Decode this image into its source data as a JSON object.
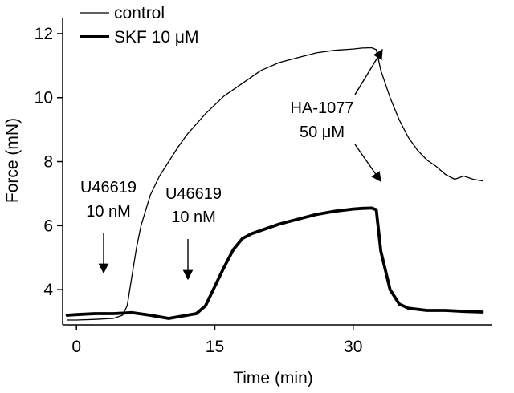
{
  "chart_data": {
    "type": "line",
    "title": "",
    "xlabel": "Time (min)",
    "ylabel": "Force (mN)",
    "xlim": [
      -1.5,
      45
    ],
    "ylim": [
      2.9,
      12.5
    ],
    "xticks": [
      0,
      15,
      30
    ],
    "xtick_labels": [
      "0",
      "15",
      "30"
    ],
    "yticks": [
      4,
      6,
      8,
      10,
      12
    ],
    "ytick_labels": [
      "4",
      "6",
      "8",
      "10",
      "12"
    ],
    "grid": false,
    "legend_position": "top-left",
    "series": [
      {
        "name": "control",
        "style": "thin",
        "color": "#000000",
        "x": [
          -1,
          0,
          2,
          4,
          5,
          5.5,
          6,
          6.5,
          7,
          8,
          9,
          10,
          11,
          12,
          14,
          16,
          18,
          20,
          22,
          24,
          26,
          28,
          30,
          31,
          32,
          32.5,
          33,
          34,
          35,
          36,
          37,
          38,
          39,
          40,
          41,
          42,
          43,
          44
        ],
        "y": [
          3.05,
          3.05,
          3.07,
          3.1,
          3.2,
          3.5,
          4.4,
          5.3,
          6.0,
          6.95,
          7.55,
          8.0,
          8.45,
          8.85,
          9.5,
          10.05,
          10.45,
          10.85,
          11.1,
          11.25,
          11.4,
          11.48,
          11.52,
          11.55,
          11.56,
          11.5,
          10.85,
          10.0,
          9.3,
          8.75,
          8.35,
          8.05,
          7.85,
          7.6,
          7.45,
          7.55,
          7.45,
          7.4
        ]
      },
      {
        "name": "SKF 10 μM",
        "style": "thick",
        "color": "#000000",
        "x": [
          -1,
          0,
          2,
          4,
          6,
          8,
          10,
          11,
          12,
          13,
          14,
          15,
          16,
          17,
          18,
          19,
          20,
          22,
          24,
          26,
          28,
          30,
          31,
          32,
          32.5,
          33,
          34,
          35,
          36,
          38,
          40,
          42,
          44
        ],
        "y": [
          3.2,
          3.22,
          3.25,
          3.25,
          3.28,
          3.2,
          3.1,
          3.15,
          3.2,
          3.25,
          3.5,
          4.1,
          4.7,
          5.25,
          5.6,
          5.75,
          5.85,
          6.05,
          6.2,
          6.35,
          6.45,
          6.52,
          6.54,
          6.55,
          6.5,
          5.2,
          4.0,
          3.55,
          3.42,
          3.35,
          3.35,
          3.32,
          3.3
        ]
      }
    ],
    "annotations": [
      {
        "lines": [
          "U46619",
          "10 nM"
        ],
        "target_x": 3.8,
        "target_y": 3.3
      },
      {
        "lines": [
          "U46619",
          "10 nM"
        ],
        "target_x": 12.5,
        "target_y": 3.3
      },
      {
        "lines": [
          "HA-1077",
          "50 μM"
        ],
        "targets": [
          {
            "x": 32.3,
            "y": 11.5
          },
          {
            "x": 32.3,
            "y": 6.6
          }
        ]
      }
    ]
  }
}
